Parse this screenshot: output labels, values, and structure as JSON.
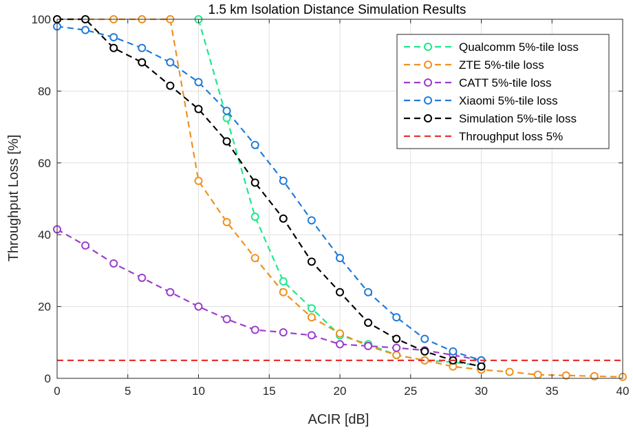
{
  "chart_data": {
    "type": "line",
    "title": "1.5 km Isolation Distance Simulation Results",
    "xlabel": "ACIR [dB]",
    "ylabel": "Throughput Loss [%]",
    "xlim": [
      0,
      40
    ],
    "ylim": [
      0,
      100
    ],
    "xticks": [
      0,
      5,
      10,
      15,
      20,
      25,
      30,
      35,
      40
    ],
    "yticks": [
      0,
      20,
      40,
      60,
      80,
      100
    ],
    "grid": true,
    "legend_position": "top-right",
    "series": [
      {
        "name": "Qualcomm 5%-tile loss",
        "color": "#1de88a",
        "style": "dashed-marker",
        "x": [
          10,
          12,
          14,
          16,
          18,
          20,
          22,
          24,
          26,
          28,
          30
        ],
        "y": [
          100,
          72.5,
          45,
          27,
          19.5,
          12,
          9.5,
          6.5,
          5,
          4.5,
          3.5
        ]
      },
      {
        "name": "ZTE 5%-tile loss",
        "color": "#f0901e",
        "style": "dashed-marker",
        "x": [
          0,
          2,
          4,
          6,
          8,
          10,
          12,
          14,
          16,
          18,
          20,
          22,
          24,
          26,
          28,
          30,
          32,
          34,
          36,
          38,
          40
        ],
        "y": [
          100,
          100,
          100,
          100,
          100,
          55,
          43.5,
          33.5,
          24,
          17,
          12.5,
          9,
          6.5,
          5,
          3.3,
          2.4,
          1.8,
          1,
          0.8,
          0.6,
          0.4
        ]
      },
      {
        "name": "CATT 5%-tile loss",
        "color": "#9b3dcc",
        "style": "dashed-marker",
        "x": [
          0,
          2,
          4,
          6,
          8,
          10,
          12,
          14,
          16,
          18,
          20,
          22,
          24,
          26,
          28,
          30
        ],
        "y": [
          41.5,
          37,
          32,
          28,
          24,
          20,
          16.5,
          13.5,
          12.8,
          12,
          9.5,
          9,
          8.5,
          7.8,
          6.5,
          5
        ]
      },
      {
        "name": "Xiaomi 5%-tile loss",
        "color": "#1f7bd8",
        "style": "dashed-marker",
        "x": [
          0,
          2,
          4,
          6,
          8,
          10,
          12,
          14,
          16,
          18,
          20,
          22,
          24,
          26,
          28,
          30
        ],
        "y": [
          98,
          97,
          95,
          92,
          88,
          82.5,
          74.5,
          65,
          55,
          44,
          33.5,
          24,
          17,
          11,
          7.5,
          5
        ]
      },
      {
        "name": "Simulation 5%-tile loss",
        "color": "#000000",
        "style": "dashed-marker",
        "x": [
          0,
          2,
          4,
          6,
          8,
          10,
          12,
          14,
          16,
          18,
          20,
          22,
          24,
          26,
          28,
          30
        ],
        "y": [
          100,
          100,
          92,
          88,
          81.5,
          75,
          66,
          54.5,
          44.5,
          32.5,
          24,
          15.5,
          11,
          7.5,
          5,
          3.3
        ]
      },
      {
        "name": "Throughput loss 5%",
        "color": "#e83030",
        "style": "dashed",
        "x": [
          0,
          40
        ],
        "y": [
          5,
          5
        ]
      }
    ]
  }
}
